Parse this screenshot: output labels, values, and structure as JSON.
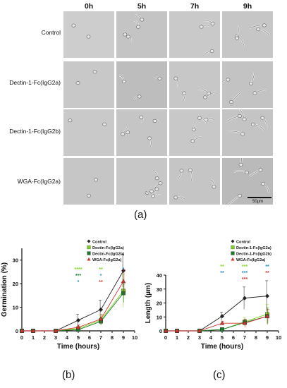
{
  "panel_a": {
    "columns": [
      "0h",
      "5h",
      "7h",
      "9h"
    ],
    "rows": [
      "Control",
      "Dectin-1-Fc(IgG2a)",
      "Dectin-1-Fc(IgG2b)",
      "WGA-Fc(IgG2a)"
    ],
    "scale_bar_label": "50µm",
    "letter": "(a)"
  },
  "panel_b": {
    "letter": "(b)"
  },
  "panel_c": {
    "letter": "(c)"
  },
  "chart_data": [
    {
      "type": "line",
      "xlabel": "Time (hours)",
      "ylabel": "Germination (%)",
      "xlim": [
        0,
        10
      ],
      "ylim": [
        0,
        35
      ],
      "xticks": [
        0,
        1,
        2,
        3,
        4,
        5,
        6,
        7,
        8,
        9,
        10
      ],
      "yticks": [
        0,
        10,
        20,
        30
      ],
      "legend_position": "top-left",
      "series": [
        {
          "name": "Control",
          "color": "#222222",
          "marker": "diamond",
          "x": [
            0,
            1,
            3,
            5,
            7,
            9
          ],
          "y": [
            0,
            0,
            0,
            4.5,
            9,
            25.5
          ],
          "err": [
            0,
            0,
            0,
            2.5,
            4,
            7
          ]
        },
        {
          "name": "Dectin-Fc(IgG2a)",
          "color": "#7ed321",
          "marker": "square",
          "x": [
            0,
            1,
            3,
            5,
            7,
            9
          ],
          "y": [
            0,
            0,
            0,
            1,
            4.5,
            17
          ],
          "err": [
            0,
            0,
            0,
            1,
            2,
            7
          ]
        },
        {
          "name": "Dectin-Fc(IgG2b)",
          "color": "#1a7a2a",
          "marker": "square",
          "x": [
            0,
            1,
            3,
            5,
            7,
            9
          ],
          "y": [
            0,
            0,
            0,
            0.5,
            4,
            16
          ],
          "err": [
            0,
            0,
            0,
            1,
            1.5,
            4
          ]
        },
        {
          "name": "WGA-Fc(IgG2a)",
          "color": "#d0342c",
          "marker": "triangle",
          "x": [
            0,
            1,
            3,
            5,
            7,
            9
          ],
          "y": [
            0,
            0,
            0,
            1.5,
            5,
            21
          ],
          "err": [
            0,
            0,
            0,
            1,
            2,
            5
          ]
        }
      ],
      "annotations": [
        {
          "x": 5,
          "rows": [
            {
              "text": "****",
              "color": "#7ed321"
            },
            {
              "text": "***",
              "color": "#1a7a2a"
            },
            {
              "text": "*",
              "color": "#1e88b4"
            }
          ]
        },
        {
          "x": 7,
          "rows": [
            {
              "text": "**",
              "color": "#7ed321"
            },
            {
              "text": "*",
              "color": "#1e88b4"
            },
            {
              "text": "**",
              "color": "#d0342c"
            }
          ]
        },
        {
          "x": 9,
          "rows": [
            {
              "text": "*",
              "color": "#1e88b4"
            }
          ]
        }
      ]
    },
    {
      "type": "line",
      "xlabel": "Time (hours)",
      "ylabel": "Length (µm)",
      "xlim": [
        0,
        10
      ],
      "ylim": [
        0,
        40
      ],
      "xticks": [
        0,
        1,
        2,
        3,
        4,
        5,
        6,
        7,
        8,
        9,
        10
      ],
      "yticks": [
        0,
        10,
        20,
        30,
        40
      ],
      "legend_position": "top-left",
      "series": [
        {
          "name": "Control",
          "color": "#222222",
          "marker": "diamond",
          "x": [
            0,
            1,
            3,
            5,
            7,
            9
          ],
          "y": [
            0,
            0,
            0,
            10.5,
            23.5,
            25
          ],
          "err": [
            0,
            0,
            0,
            3,
            8,
            11
          ]
        },
        {
          "name": "Dectin-1-Fc(IgG2a)",
          "color": "#7ed321",
          "marker": "square",
          "x": [
            0,
            1,
            3,
            5,
            7,
            9
          ],
          "y": [
            0,
            0,
            0,
            1,
            6.5,
            12
          ],
          "err": [
            0,
            0,
            0,
            0.5,
            3,
            7
          ]
        },
        {
          "name": "Dectin-1-Fc(IgG2b)",
          "color": "#1a7a2a",
          "marker": "square",
          "x": [
            0,
            1,
            3,
            5,
            7,
            9
          ],
          "y": [
            0,
            0,
            0,
            1,
            6,
            10.5
          ],
          "err": [
            0,
            0,
            0,
            0.5,
            2,
            6
          ]
        },
        {
          "name": "WGA-Fc(IgG2a)",
          "color": "#d0342c",
          "marker": "triangle",
          "x": [
            0,
            1,
            3,
            5,
            7,
            9
          ],
          "y": [
            0,
            0,
            0,
            5.5,
            5.5,
            10.5
          ],
          "err": [
            0,
            0,
            0,
            1.5,
            3,
            5
          ]
        }
      ],
      "annotations": [
        {
          "x": 5,
          "rows": [
            {
              "text": "**",
              "color": "#7ed321"
            },
            {
              "text": "**",
              "color": "#1e88b4"
            }
          ]
        },
        {
          "x": 7,
          "rows": [
            {
              "text": "***",
              "color": "#7ed321"
            },
            {
              "text": "***",
              "color": "#1e88b4"
            },
            {
              "text": "***",
              "color": "#d0342c"
            }
          ]
        },
        {
          "x": 9,
          "rows": [
            {
              "text": "**",
              "color": "#1e88b4"
            },
            {
              "text": "**",
              "color": "#d0342c"
            }
          ]
        }
      ]
    }
  ]
}
